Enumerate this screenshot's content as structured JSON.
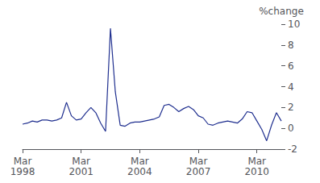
{
  "chart_data": {
    "type": "line",
    "ylabel": "%change",
    "color": "#1F2F8F",
    "ylim": [
      -2,
      10
    ],
    "yticks": [
      -2,
      0,
      2,
      4,
      6,
      8,
      10
    ],
    "grid": false,
    "categories": [
      "Mar\n1998",
      null,
      null,
      null,
      null,
      null,
      null,
      null,
      null,
      null,
      null,
      null,
      "Mar\n2001",
      null,
      null,
      null,
      null,
      null,
      null,
      null,
      null,
      null,
      null,
      null,
      "Mar\n2004",
      null,
      null,
      null,
      null,
      null,
      null,
      null,
      null,
      null,
      null,
      null,
      "Mar\n2007",
      null,
      null,
      null,
      null,
      null,
      null,
      null,
      null,
      null,
      null,
      null,
      "Mar\n2010",
      null,
      null,
      null,
      null,
      null
    ],
    "values": [
      0.4,
      0.5,
      0.7,
      0.6,
      0.8,
      0.8,
      0.7,
      0.8,
      1.0,
      2.5,
      1.2,
      0.8,
      0.9,
      1.5,
      2.0,
      1.5,
      0.5,
      -0.3,
      9.6,
      3.5,
      0.3,
      0.2,
      0.5,
      0.6,
      0.6,
      0.7,
      0.8,
      0.9,
      1.1,
      2.2,
      2.3,
      2.0,
      1.6,
      1.9,
      2.1,
      1.8,
      1.2,
      1.0,
      0.4,
      0.3,
      0.5,
      0.6,
      0.7,
      0.6,
      0.5,
      0.9,
      1.6,
      1.5,
      0.7,
      -0.1,
      -1.2,
      0.3,
      1.5,
      0.7
    ]
  }
}
